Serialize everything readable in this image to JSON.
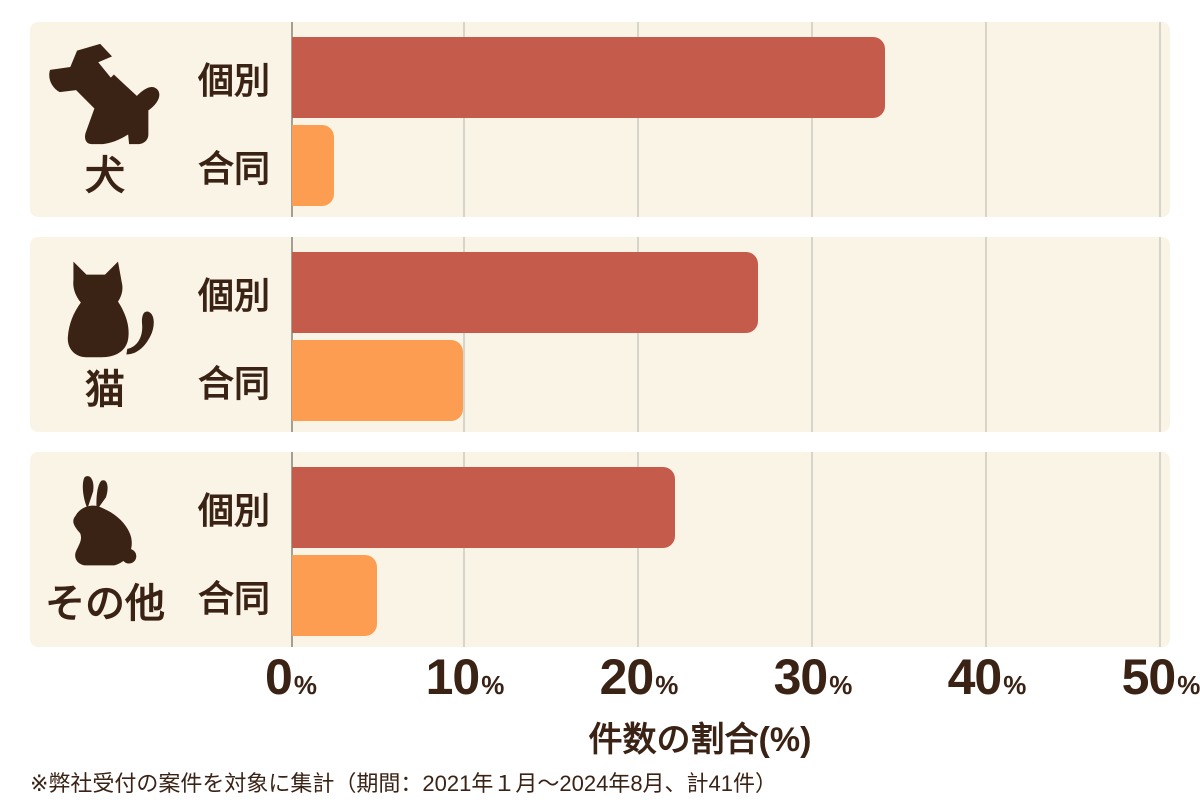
{
  "page": {
    "background": "#ffffff",
    "footnote": "※弊社受付の案件を対象に集計（期間：2021年１月～2024年8月、計41件）"
  },
  "chart_data": {
    "type": "bar",
    "orientation": "horizontal",
    "title": "",
    "xlabel": "件数の割合(%)",
    "ylabel": "",
    "xlim": [
      0,
      50
    ],
    "grid": true,
    "x_ticks": [
      "0",
      "10",
      "20",
      "30",
      "40",
      "50"
    ],
    "tick_suffix": "%",
    "series_names": [
      "個別",
      "合同"
    ],
    "groups": [
      {
        "category": "犬",
        "icon": "dog-icon",
        "bars": [
          {
            "label": "個別",
            "value": 34.1
          },
          {
            "label": "合同",
            "value": 2.4
          }
        ]
      },
      {
        "category": "猫",
        "icon": "cat-icon",
        "bars": [
          {
            "label": "個別",
            "value": 26.8
          },
          {
            "label": "合同",
            "value": 9.8
          }
        ]
      },
      {
        "category": "その他",
        "icon": "rabbit-icon",
        "bars": [
          {
            "label": "個別",
            "value": 22.0
          },
          {
            "label": "合同",
            "value": 4.9
          }
        ]
      }
    ],
    "total_cases": "41",
    "colors": {
      "individual_bar": "#c45b4b",
      "joint_bar": "#fc9d52",
      "panel_background": "#faf4e6",
      "text": "#3a2315",
      "gridline": "#d7d4ca",
      "axis_line": "#a29f95"
    }
  }
}
